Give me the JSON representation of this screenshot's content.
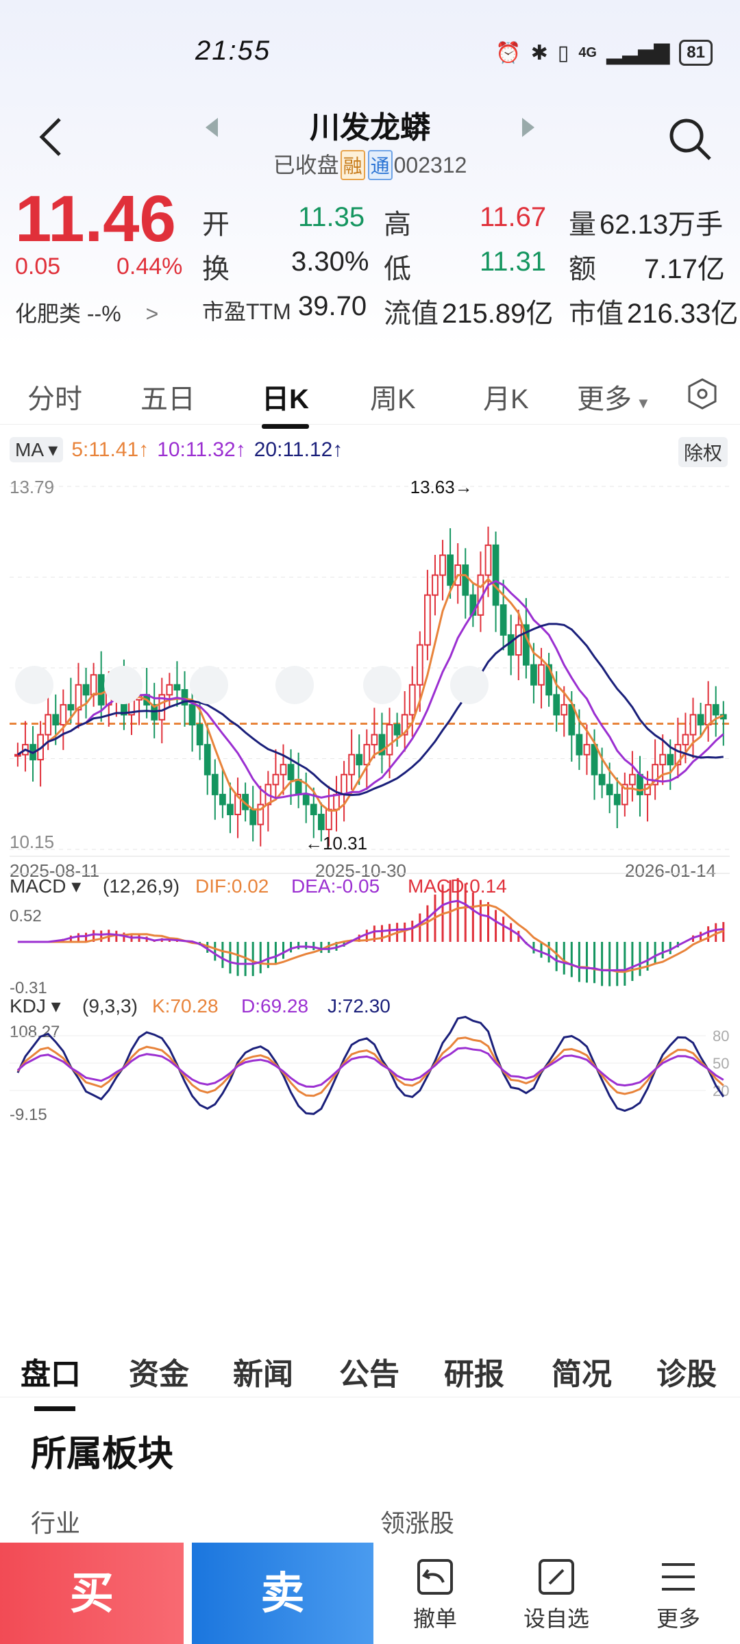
{
  "status": {
    "time": "21:55",
    "network": "4G",
    "battery": "81"
  },
  "header": {
    "title": "川发龙蟒",
    "status_text": "已收盘",
    "tag_rong": "融",
    "tag_tong": "通",
    "code": "002312"
  },
  "quote": {
    "price": "11.46",
    "change": "0.05",
    "change_pct": "0.44%",
    "sector": "化肥类 --%",
    "open_label": "开",
    "open": "11.35",
    "high_label": "高",
    "high": "11.67",
    "volume_label": "量",
    "volume": "62.13万手",
    "turnover_label": "换",
    "turnover": "3.30%",
    "low_label": "低",
    "low": "11.31",
    "amount_label": "额",
    "amount": "7.17亿",
    "pe_label": "市盈TTM",
    "pe": "39.70",
    "float_label": "流值",
    "float_cap": "215.89亿",
    "mcap_label": "市值",
    "mcap": "216.33亿"
  },
  "tabs": [
    "分时",
    "五日",
    "日K",
    "周K",
    "月K",
    "更多"
  ],
  "ma": {
    "label": "MA",
    "ma5": "5:11.41↑",
    "ma10": "10:11.32↑",
    "ma20": "20:11.12↑",
    "adjust": "除权"
  },
  "chart_colors": {
    "up": "#e0303a",
    "down": "#14955f",
    "ma5": "#e8833a",
    "ma10": "#9b2fd1",
    "ma20": "#1a1f7a"
  },
  "chart_data": {
    "type": "candlestick",
    "y_max_label": "13.79",
    "y_min_label": "10.15",
    "peak_label": "13.63→",
    "trough_label": "←10.31",
    "dates": [
      "2025-08-11",
      "2025-10-30",
      "2026-01-14"
    ],
    "ylim": [
      10.15,
      13.79
    ],
    "reference_price": 11.41,
    "closes": [
      11.1,
      11.2,
      11.05,
      11.3,
      11.5,
      11.4,
      11.6,
      11.55,
      11.8,
      11.7,
      11.9,
      11.6,
      11.75,
      11.8,
      11.5,
      11.65,
      11.7,
      11.6,
      11.45,
      11.7,
      11.8,
      11.75,
      11.6,
      11.4,
      11.2,
      10.9,
      10.7,
      10.6,
      10.5,
      10.7,
      10.55,
      10.4,
      10.6,
      10.8,
      10.9,
      11.0,
      10.85,
      10.7,
      10.6,
      10.5,
      10.35,
      10.55,
      10.7,
      10.9,
      11.1,
      11.0,
      11.2,
      11.3,
      11.1,
      11.4,
      11.3,
      11.5,
      11.8,
      12.2,
      12.7,
      12.9,
      13.1,
      12.8,
      13.0,
      12.7,
      12.5,
      12.9,
      13.2,
      12.6,
      12.3,
      12.1,
      12.4,
      12.0,
      11.8,
      12.0,
      11.7,
      11.5,
      11.6,
      11.3,
      11.1,
      11.2,
      10.9,
      10.8,
      10.7,
      10.6,
      10.8,
      10.9,
      10.7,
      10.8,
      11.0,
      11.1,
      11.0,
      11.2,
      11.3,
      11.5,
      11.4,
      11.6,
      11.5,
      11.46
    ]
  },
  "macd": {
    "label": "MACD",
    "params": "(12,26,9)",
    "dif": "DIF:0.02",
    "dea": "DEA:-0.05",
    "macd": "MACD:0.14",
    "max": "0.52",
    "min": "-0.31"
  },
  "kdj": {
    "label": "KDJ",
    "params": "(9,3,3)",
    "k": "K:70.28",
    "d": "D:69.28",
    "j": "J:72.30",
    "max": "108.27",
    "min": "-9.15",
    "l80": "80",
    "l50": "50",
    "l20": "20"
  },
  "bottom_tabs": [
    "盘口",
    "资金",
    "新闻",
    "公告",
    "研报",
    "简况",
    "诊股"
  ],
  "section": {
    "title": "所属板块",
    "col1": "行业",
    "col2": "领涨股"
  },
  "actions": {
    "buy": "买",
    "sell": "卖",
    "cancel": "撤单",
    "watch": "设自选",
    "more": "更多"
  }
}
